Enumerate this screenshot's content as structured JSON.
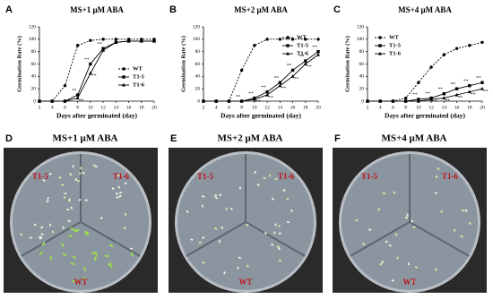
{
  "chart_data": [
    {
      "type": "line",
      "panel_label": "A",
      "title": "MS+1 μM ABA",
      "xlabel": "Days after germinated (day)",
      "ylabel": "Germination Rate (%)",
      "x": [
        2,
        4,
        6,
        8,
        10,
        12,
        14,
        16,
        18,
        20
      ],
      "xlim": [
        2,
        20
      ],
      "xticks": [
        2,
        4,
        6,
        8,
        10,
        12,
        14,
        16,
        18,
        20
      ],
      "ylim": [
        0,
        120
      ],
      "yticks": [
        0,
        20,
        40,
        60,
        80,
        100,
        120
      ],
      "legend": "lower right",
      "series": [
        {
          "name": "WT",
          "color": "#000000",
          "dashed": true,
          "marker": "circle",
          "values": [
            0,
            0,
            25,
            90,
            98,
            100,
            100,
            100,
            100,
            100
          ]
        },
        {
          "name": "T1-5",
          "color": "#000000",
          "dashed": false,
          "marker": "square",
          "values": [
            0,
            0,
            0,
            10,
            60,
            85,
            95,
            97,
            97,
            97
          ],
          "significance": [
            null,
            null,
            null,
            "**",
            "**",
            "**",
            null,
            null,
            null,
            null
          ]
        },
        {
          "name": "T1-6",
          "color": "#000000",
          "dashed": false,
          "marker": "triangle",
          "values": [
            0,
            0,
            0,
            5,
            45,
            82,
            95,
            97,
            97,
            97
          ],
          "significance": [
            null,
            null,
            null,
            "**",
            "**",
            null,
            null,
            null,
            null,
            null
          ]
        }
      ]
    },
    {
      "type": "line",
      "panel_label": "B",
      "title": "MS+2 μM ABA",
      "xlabel": "Days after germinated (day)",
      "ylabel": "Germination Rate (%)",
      "x": [
        2,
        4,
        6,
        8,
        10,
        12,
        14,
        16,
        18,
        20
      ],
      "xlim": [
        2,
        20
      ],
      "xticks": [
        2,
        4,
        6,
        8,
        10,
        12,
        14,
        16,
        18,
        20
      ],
      "ylim": [
        0,
        120
      ],
      "yticks": [
        0,
        20,
        40,
        60,
        80,
        100,
        120
      ],
      "legend": "upper right",
      "series": [
        {
          "name": "WT",
          "color": "#000000",
          "dashed": true,
          "marker": "circle",
          "values": [
            0,
            0,
            0,
            50,
            90,
            100,
            100,
            100,
            100,
            100
          ]
        },
        {
          "name": "T1-5",
          "color": "#000000",
          "dashed": false,
          "marker": "square",
          "values": [
            0,
            0,
            0,
            0,
            5,
            15,
            30,
            50,
            65,
            80
          ],
          "significance": [
            null,
            null,
            null,
            "**",
            "**",
            "**",
            "**",
            "**",
            "**",
            "**"
          ]
        },
        {
          "name": "T1-6",
          "color": "#000000",
          "dashed": false,
          "marker": "triangle",
          "values": [
            0,
            0,
            0,
            0,
            3,
            10,
            25,
            40,
            60,
            75
          ],
          "significance": [
            null,
            null,
            null,
            null,
            "**",
            "**",
            "**",
            "**",
            "**",
            null
          ]
        }
      ]
    },
    {
      "type": "line",
      "panel_label": "C",
      "title": "MS+4 μM ABA",
      "xlabel": "Days after germinated (day)",
      "ylabel": "Germination Rate (%)",
      "x": [
        2,
        4,
        6,
        8,
        10,
        12,
        14,
        16,
        18,
        20
      ],
      "xlim": [
        2,
        20
      ],
      "xticks": [
        2,
        4,
        6,
        8,
        10,
        12,
        14,
        16,
        18,
        20
      ],
      "ylim": [
        0,
        120
      ],
      "yticks": [
        0,
        20,
        40,
        60,
        80,
        100,
        120
      ],
      "legend": "upper left",
      "series": [
        {
          "name": "WT",
          "color": "#000000",
          "dashed": true,
          "marker": "circle",
          "values": [
            0,
            0,
            0,
            5,
            30,
            55,
            75,
            85,
            90,
            95
          ]
        },
        {
          "name": "T1-5",
          "color": "#000000",
          "dashed": false,
          "marker": "square",
          "values": [
            0,
            0,
            0,
            0,
            3,
            5,
            12,
            20,
            25,
            30
          ],
          "significance": [
            null,
            null,
            null,
            null,
            "**",
            "**",
            "**",
            "**",
            "**",
            "**"
          ]
        },
        {
          "name": "T1-6",
          "color": "#000000",
          "dashed": false,
          "marker": "triangle",
          "values": [
            0,
            0,
            0,
            0,
            0,
            3,
            5,
            10,
            15,
            20
          ],
          "significance": [
            null,
            null,
            null,
            null,
            null,
            "**",
            "**",
            "**",
            "**",
            "**"
          ]
        }
      ]
    }
  ],
  "photos": [
    {
      "panel_label": "D",
      "title": "MS+1 μM ABA",
      "labels": [
        "T1-5",
        "T1-6",
        "WT"
      ]
    },
    {
      "panel_label": "E",
      "title": "MS+2 μM ABA",
      "labels": [
        "T1-5",
        "T1-6",
        "WT"
      ]
    },
    {
      "panel_label": "F",
      "title": "MS+4 μM ABA",
      "labels": [
        "T1-5",
        "T1-6",
        "WT"
      ]
    }
  ]
}
